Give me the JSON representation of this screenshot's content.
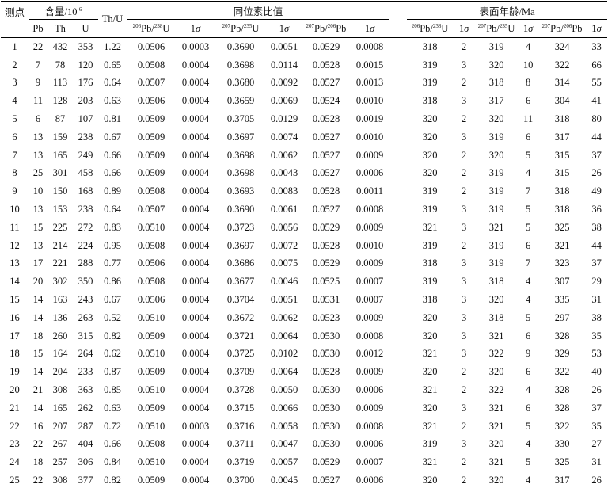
{
  "headers": {
    "spot": "测点",
    "content": "含量/10",
    "content_exp": "-6",
    "pb": "Pb",
    "th": "Th",
    "u": "U",
    "thu": "Th/U",
    "isotope_ratios": "同位素比值",
    "ages": "表面年龄/Ma",
    "m206": "206",
    "m238": "238",
    "m207": "207",
    "m235": "235",
    "pb_text": "Pb/",
    "pb_end": "Pb",
    "u_end": "U",
    "one": "1",
    "sigma": "σ"
  },
  "rows": [
    [
      "1",
      "22",
      "432",
      "353",
      "1.22",
      "0.0506",
      "0.0003",
      "0.3690",
      "0.0051",
      "0.0529",
      "0.0008",
      "318",
      "2",
      "319",
      "4",
      "324",
      "33"
    ],
    [
      "2",
      "7",
      "78",
      "120",
      "0.65",
      "0.0508",
      "0.0004",
      "0.3698",
      "0.0114",
      "0.0528",
      "0.0015",
      "319",
      "3",
      "320",
      "10",
      "322",
      "66"
    ],
    [
      "3",
      "9",
      "113",
      "176",
      "0.64",
      "0.0507",
      "0.0004",
      "0.3680",
      "0.0092",
      "0.0527",
      "0.0013",
      "319",
      "2",
      "318",
      "8",
      "314",
      "55"
    ],
    [
      "4",
      "11",
      "128",
      "203",
      "0.63",
      "0.0506",
      "0.0004",
      "0.3659",
      "0.0069",
      "0.0524",
      "0.0010",
      "318",
      "3",
      "317",
      "6",
      "304",
      "41"
    ],
    [
      "5",
      "6",
      "87",
      "107",
      "0.81",
      "0.0509",
      "0.0004",
      "0.3705",
      "0.0129",
      "0.0528",
      "0.0019",
      "320",
      "2",
      "320",
      "11",
      "318",
      "80"
    ],
    [
      "6",
      "13",
      "159",
      "238",
      "0.67",
      "0.0509",
      "0.0004",
      "0.3697",
      "0.0074",
      "0.0527",
      "0.0010",
      "320",
      "3",
      "319",
      "6",
      "317",
      "44"
    ],
    [
      "7",
      "13",
      "165",
      "249",
      "0.66",
      "0.0509",
      "0.0004",
      "0.3698",
      "0.0062",
      "0.0527",
      "0.0009",
      "320",
      "2",
      "320",
      "5",
      "315",
      "37"
    ],
    [
      "8",
      "25",
      "301",
      "458",
      "0.66",
      "0.0509",
      "0.0004",
      "0.3698",
      "0.0043",
      "0.0527",
      "0.0006",
      "320",
      "2",
      "319",
      "4",
      "315",
      "26"
    ],
    [
      "9",
      "10",
      "150",
      "168",
      "0.89",
      "0.0508",
      "0.0004",
      "0.3693",
      "0.0083",
      "0.0528",
      "0.0011",
      "319",
      "2",
      "319",
      "7",
      "318",
      "49"
    ],
    [
      "10",
      "13",
      "153",
      "238",
      "0.64",
      "0.0507",
      "0.0004",
      "0.3690",
      "0.0061",
      "0.0527",
      "0.0008",
      "319",
      "3",
      "319",
      "5",
      "318",
      "36"
    ],
    [
      "11",
      "15",
      "225",
      "272",
      "0.83",
      "0.0510",
      "0.0004",
      "0.3723",
      "0.0056",
      "0.0529",
      "0.0009",
      "321",
      "3",
      "321",
      "5",
      "325",
      "38"
    ],
    [
      "12",
      "13",
      "214",
      "224",
      "0.95",
      "0.0508",
      "0.0004",
      "0.3697",
      "0.0072",
      "0.0528",
      "0.0010",
      "319",
      "2",
      "319",
      "6",
      "321",
      "44"
    ],
    [
      "13",
      "17",
      "221",
      "288",
      "0.77",
      "0.0506",
      "0.0004",
      "0.3686",
      "0.0075",
      "0.0529",
      "0.0009",
      "318",
      "3",
      "319",
      "7",
      "323",
      "37"
    ],
    [
      "14",
      "20",
      "302",
      "350",
      "0.86",
      "0.0508",
      "0.0004",
      "0.3677",
      "0.0046",
      "0.0525",
      "0.0007",
      "319",
      "3",
      "318",
      "4",
      "307",
      "29"
    ],
    [
      "15",
      "14",
      "163",
      "243",
      "0.67",
      "0.0506",
      "0.0004",
      "0.3704",
      "0.0051",
      "0.0531",
      "0.0007",
      "318",
      "3",
      "320",
      "4",
      "335",
      "31"
    ],
    [
      "16",
      "14",
      "136",
      "263",
      "0.52",
      "0.0510",
      "0.0004",
      "0.3672",
      "0.0062",
      "0.0523",
      "0.0009",
      "320",
      "3",
      "318",
      "5",
      "297",
      "38"
    ],
    [
      "17",
      "18",
      "260",
      "315",
      "0.82",
      "0.0509",
      "0.0004",
      "0.3721",
      "0.0064",
      "0.0530",
      "0.0008",
      "320",
      "3",
      "321",
      "6",
      "328",
      "35"
    ],
    [
      "18",
      "15",
      "164",
      "264",
      "0.62",
      "0.0510",
      "0.0004",
      "0.3725",
      "0.0102",
      "0.0530",
      "0.0012",
      "321",
      "3",
      "322",
      "9",
      "329",
      "53"
    ],
    [
      "19",
      "14",
      "204",
      "233",
      "0.87",
      "0.0509",
      "0.0004",
      "0.3709",
      "0.0064",
      "0.0528",
      "0.0009",
      "320",
      "2",
      "320",
      "6",
      "322",
      "40"
    ],
    [
      "20",
      "21",
      "308",
      "363",
      "0.85",
      "0.0510",
      "0.0004",
      "0.3728",
      "0.0050",
      "0.0530",
      "0.0006",
      "321",
      "2",
      "322",
      "4",
      "328",
      "26"
    ],
    [
      "21",
      "14",
      "165",
      "262",
      "0.63",
      "0.0509",
      "0.0004",
      "0.3715",
      "0.0066",
      "0.0530",
      "0.0009",
      "320",
      "3",
      "321",
      "6",
      "328",
      "37"
    ],
    [
      "22",
      "16",
      "207",
      "287",
      "0.72",
      "0.0510",
      "0.0003",
      "0.3716",
      "0.0058",
      "0.0530",
      "0.0008",
      "321",
      "2",
      "321",
      "5",
      "322",
      "35"
    ],
    [
      "23",
      "22",
      "267",
      "404",
      "0.66",
      "0.0508",
      "0.0004",
      "0.3711",
      "0.0047",
      "0.0530",
      "0.0006",
      "319",
      "3",
      "320",
      "4",
      "330",
      "27"
    ],
    [
      "24",
      "18",
      "257",
      "306",
      "0.84",
      "0.0510",
      "0.0004",
      "0.3719",
      "0.0057",
      "0.0529",
      "0.0007",
      "321",
      "2",
      "321",
      "5",
      "325",
      "31"
    ],
    [
      "25",
      "22",
      "308",
      "377",
      "0.82",
      "0.0509",
      "0.0004",
      "0.3700",
      "0.0045",
      "0.0527",
      "0.0006",
      "320",
      "2",
      "320",
      "4",
      "317",
      "26"
    ]
  ]
}
